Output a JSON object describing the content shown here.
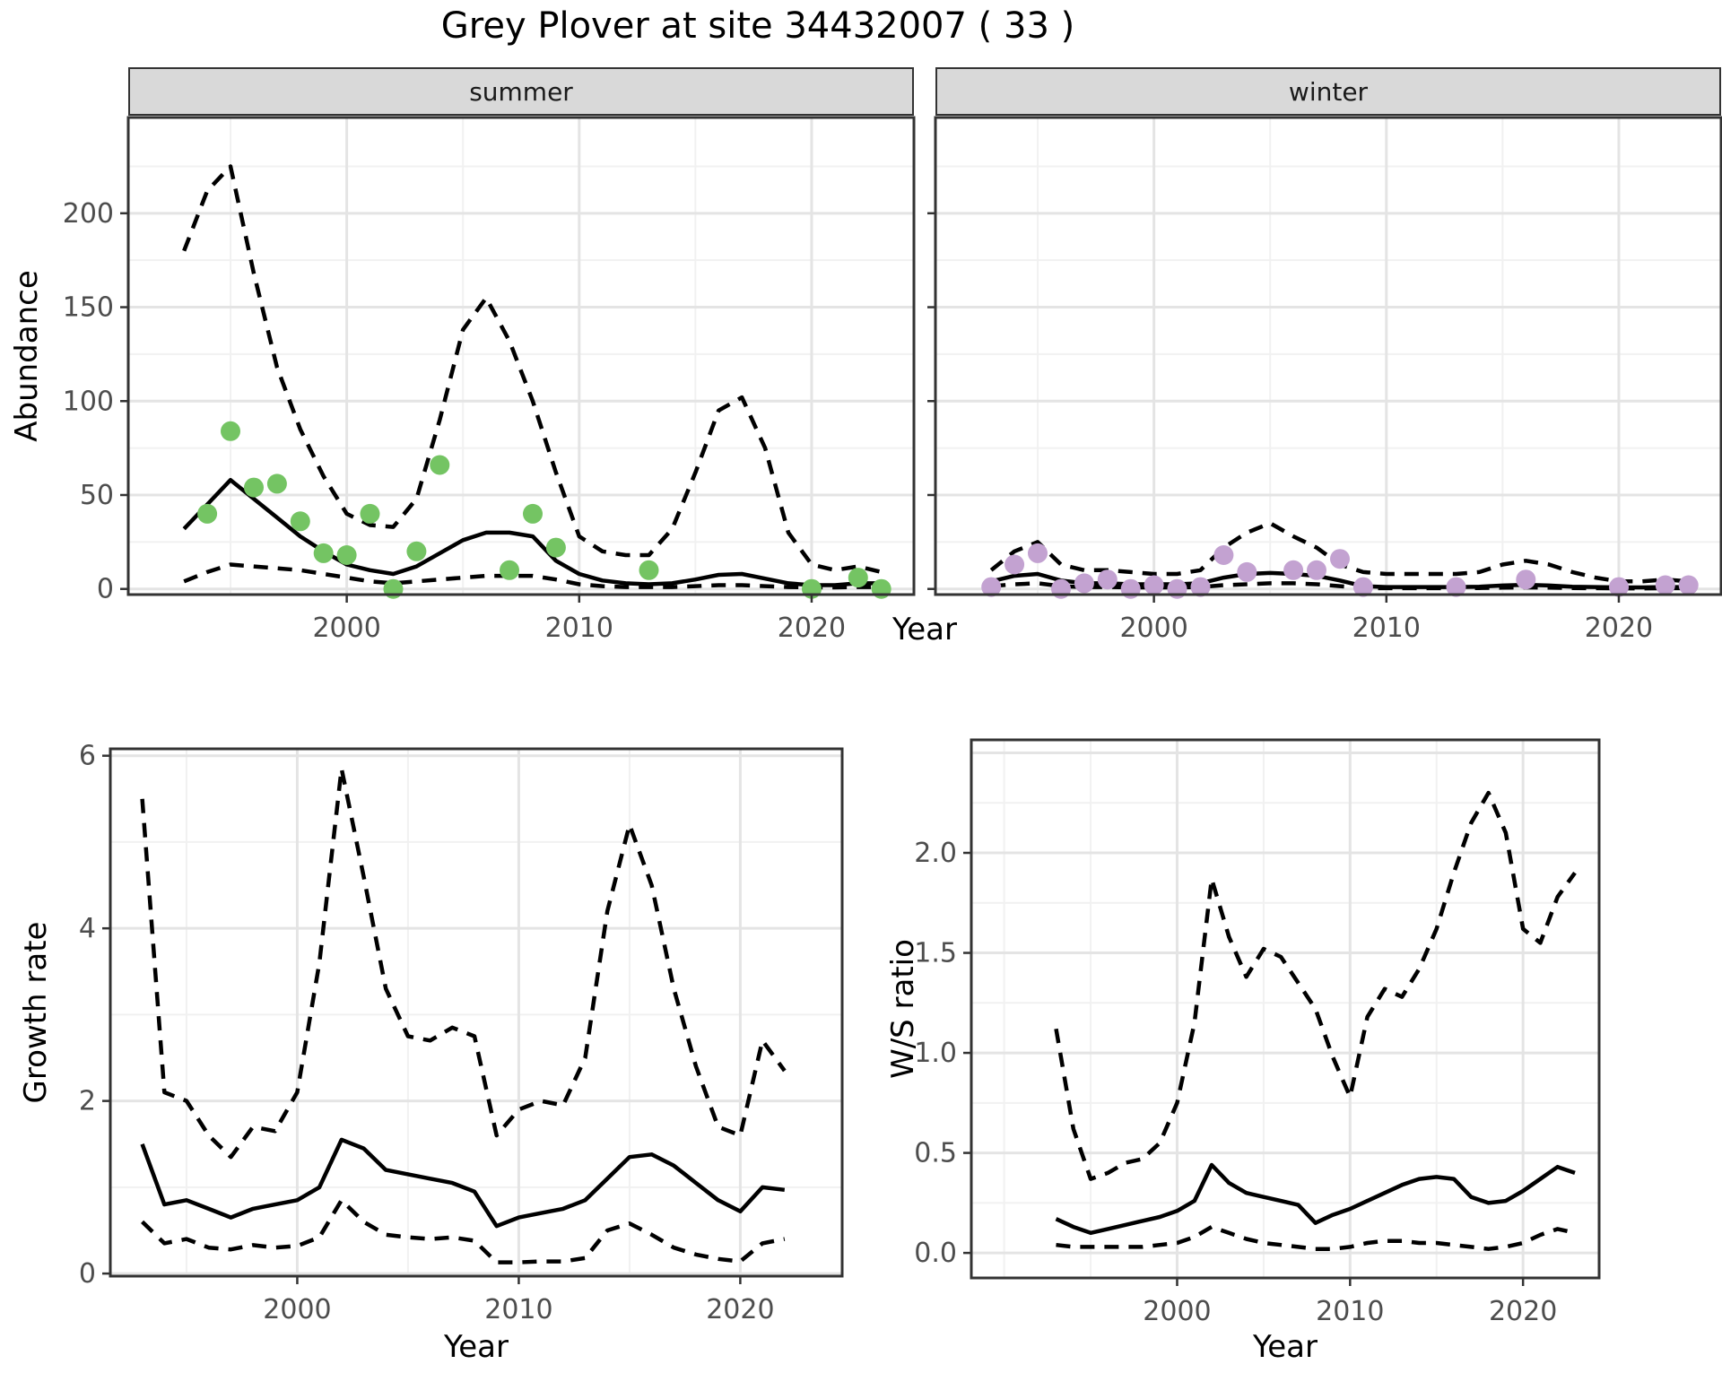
{
  "title": "Grey Plover at site 34432007 ( 33 )",
  "labels": {
    "abundance": "Abundance",
    "growth_rate": "Growth rate",
    "ws_ratio": "W/S ratio",
    "year": "Year"
  },
  "facets": [
    "summer",
    "winter"
  ],
  "colors": {
    "summer_point": "#74c463",
    "winter_point": "#c3a2d1",
    "line": "#000000",
    "panel_border": "#333333",
    "strip_bg": "#d9d9d9",
    "grid_major": "#e4e4e4",
    "grid_minor": "#f1f1f1",
    "tick_label": "#4d4d4d"
  },
  "chart_data": [
    {
      "id": "abundance_summer",
      "type": "line",
      "title": "summer",
      "xlabel": "Year",
      "ylabel": "Abundance",
      "xlim": [
        1990.6,
        2024.4
      ],
      "ylim": [
        -3,
        251
      ],
      "xticks": [
        2000,
        2010,
        2020
      ],
      "xticklabels": [
        "2000",
        "2010",
        "2020"
      ],
      "yticks": [
        0,
        50,
        100,
        150,
        200
      ],
      "yticklabels": [
        "0",
        "50",
        "100",
        "150",
        "200"
      ],
      "xgrid_minor": [
        1995,
        2005,
        2015
      ],
      "ygrid_minor": [
        25,
        75,
        125,
        175,
        225
      ],
      "show_ytick_labels": true,
      "x": [
        1993,
        1994,
        1995,
        1996,
        1997,
        1998,
        1999,
        2000,
        2001,
        2002,
        2003,
        2004,
        2005,
        2006,
        2007,
        2008,
        2009,
        2010,
        2011,
        2012,
        2013,
        2014,
        2015,
        2016,
        2017,
        2018,
        2019,
        2020,
        2021,
        2022,
        2023
      ],
      "series": [
        {
          "name": "fit",
          "style": "solid",
          "values": [
            32,
            45,
            58,
            48,
            38,
            28,
            20,
            13,
            10,
            8,
            12,
            19,
            26,
            30,
            30,
            28,
            15,
            8,
            4.5,
            3,
            2.5,
            3,
            5,
            7.5,
            8,
            5.5,
            3,
            2,
            2,
            3,
            3
          ]
        },
        {
          "name": "upper_ci",
          "style": "dashed",
          "values": [
            180,
            212,
            225,
            168,
            118,
            85,
            60,
            40,
            34,
            33,
            48,
            90,
            138,
            155,
            132,
            100,
            62,
            28,
            20,
            18,
            18,
            32,
            62,
            95,
            102,
            75,
            30,
            13,
            10,
            12,
            9
          ]
        },
        {
          "name": "lower_ci",
          "style": "dashed",
          "values": [
            4,
            9,
            13,
            12,
            11,
            10,
            8,
            6,
            4,
            3,
            4,
            5,
            6,
            7,
            7,
            7,
            5,
            2.5,
            1.5,
            1,
            1,
            1,
            1.5,
            2,
            2,
            1.5,
            1,
            0.8,
            0.8,
            1,
            1
          ]
        }
      ],
      "points": {
        "color_key": "summer_point",
        "years": [
          1994,
          1995,
          1996,
          1997,
          1998,
          1999,
          2000,
          2001,
          2002,
          2003,
          2004,
          2007,
          2008,
          2009,
          2013,
          2020,
          2022,
          2023
        ],
        "values": [
          40,
          84,
          54,
          56,
          36,
          19,
          18,
          40,
          0,
          20,
          66,
          10,
          40,
          22,
          10,
          0,
          6,
          0
        ]
      }
    },
    {
      "id": "abundance_winter",
      "type": "line",
      "title": "winter",
      "xlabel": "Year",
      "ylabel": "Abundance",
      "xlim": [
        1990.6,
        2024.4
      ],
      "ylim": [
        -3,
        251
      ],
      "xticks": [
        2000,
        2010,
        2020
      ],
      "xticklabels": [
        "2000",
        "2010",
        "2020"
      ],
      "yticks": [
        0,
        50,
        100,
        150,
        200
      ],
      "yticklabels": [
        "0",
        "50",
        "100",
        "150",
        "200"
      ],
      "xgrid_minor": [
        1995,
        2005,
        2015
      ],
      "ygrid_minor": [
        25,
        75,
        125,
        175,
        225
      ],
      "show_ytick_labels": false,
      "x": [
        1993,
        1994,
        1995,
        1996,
        1997,
        1998,
        1999,
        2000,
        2001,
        2002,
        2003,
        2004,
        2005,
        2006,
        2007,
        2008,
        2009,
        2010,
        2011,
        2012,
        2013,
        2014,
        2015,
        2016,
        2017,
        2018,
        2019,
        2020,
        2021,
        2022,
        2023
      ],
      "series": [
        {
          "name": "fit",
          "style": "solid",
          "values": [
            4,
            7,
            8,
            4.5,
            3,
            3,
            2.5,
            2.5,
            2.5,
            3,
            6,
            8,
            8.5,
            8,
            7,
            4.5,
            1.5,
            1,
            1,
            1,
            1,
            1.2,
            1.8,
            2.2,
            1.8,
            1.2,
            1,
            0.8,
            0.8,
            1,
            1
          ]
        },
        {
          "name": "upper_ci",
          "style": "dashed",
          "values": [
            10,
            20,
            25,
            13,
            10,
            10,
            9,
            8,
            8,
            10,
            22,
            30,
            35,
            28,
            22,
            13,
            9,
            8,
            8,
            8,
            8,
            9,
            13,
            15,
            13,
            9,
            6,
            4,
            4,
            5,
            4
          ]
        },
        {
          "name": "lower_ci",
          "style": "dashed",
          "values": [
            1.5,
            2.5,
            3,
            1.5,
            1,
            1,
            0.8,
            0.8,
            0.8,
            1,
            2,
            2.5,
            3,
            3,
            2.5,
            1.5,
            0.5,
            0.4,
            0.4,
            0.4,
            0.4,
            0.5,
            0.7,
            0.8,
            0.7,
            0.5,
            0.4,
            0.3,
            0.3,
            0.4,
            0.4
          ]
        }
      ],
      "points": {
        "color_key": "winter_point",
        "years": [
          1993,
          1994,
          1995,
          1996,
          1997,
          1998,
          1999,
          2000,
          2001,
          2002,
          2003,
          2004,
          2006,
          2007,
          2008,
          2009,
          2013,
          2016,
          2020,
          2022,
          2023
        ],
        "values": [
          1,
          13,
          19,
          0,
          3,
          5,
          0,
          2,
          0,
          1,
          18,
          9,
          10,
          10,
          16,
          1,
          1,
          5,
          1,
          2,
          2
        ]
      }
    },
    {
      "id": "growth",
      "type": "line",
      "title": "",
      "xlabel": "Year",
      "ylabel": "Growth rate",
      "xlim": [
        1991.56,
        2024.6
      ],
      "ylim": [
        -0.03,
        6.08
      ],
      "xticks": [
        2000,
        2010,
        2020
      ],
      "xticklabels": [
        "2000",
        "2010",
        "2020"
      ],
      "yticks": [
        0,
        2,
        4,
        6
      ],
      "yticklabels": [
        "0",
        "2",
        "4",
        "6"
      ],
      "xgrid_minor": [
        1995,
        2005,
        2015
      ],
      "ygrid_minor": [
        1,
        3,
        5
      ],
      "show_ytick_labels": true,
      "x": [
        1993,
        1994,
        1995,
        1996,
        1997,
        1998,
        1999,
        2000,
        2001,
        2002,
        2003,
        2004,
        2005,
        2006,
        2007,
        2008,
        2009,
        2010,
        2011,
        2012,
        2013,
        2014,
        2015,
        2016,
        2017,
        2018,
        2019,
        2020,
        2021,
        2022
      ],
      "series": [
        {
          "name": "median",
          "style": "solid",
          "values": [
            1.5,
            0.8,
            0.85,
            0.75,
            0.65,
            0.75,
            0.8,
            0.85,
            1.0,
            1.55,
            1.45,
            1.2,
            1.15,
            1.1,
            1.05,
            0.95,
            0.55,
            0.65,
            0.7,
            0.75,
            0.85,
            1.1,
            1.35,
            1.38,
            1.25,
            1.05,
            0.85,
            0.72,
            1.0,
            0.97
          ]
        },
        {
          "name": "upper_ci",
          "style": "dashed",
          "values": [
            5.5,
            2.1,
            2.0,
            1.6,
            1.35,
            1.7,
            1.65,
            2.1,
            3.6,
            5.85,
            4.6,
            3.3,
            2.75,
            2.7,
            2.85,
            2.75,
            1.6,
            1.9,
            2.0,
            1.95,
            2.5,
            4.2,
            5.2,
            4.5,
            3.3,
            2.4,
            1.7,
            1.6,
            2.7,
            2.35
          ]
        },
        {
          "name": "lower_ci",
          "style": "dashed",
          "values": [
            0.6,
            0.35,
            0.4,
            0.3,
            0.28,
            0.33,
            0.3,
            0.32,
            0.42,
            0.85,
            0.6,
            0.45,
            0.42,
            0.4,
            0.42,
            0.38,
            0.13,
            0.13,
            0.14,
            0.14,
            0.18,
            0.5,
            0.58,
            0.45,
            0.3,
            0.22,
            0.17,
            0.14,
            0.35,
            0.4
          ]
        }
      ],
      "points": null
    },
    {
      "id": "ws",
      "type": "line",
      "title": "",
      "xlabel": "Year",
      "ylabel": "W/S ratio",
      "xlim": [
        1988.1,
        2024.4
      ],
      "ylim": [
        -0.125,
        2.565
      ],
      "xticks": [
        2000,
        2010,
        2020
      ],
      "xticklabels": [
        "2000",
        "2010",
        "2020"
      ],
      "yticks": [
        0,
        0.5,
        1.0,
        1.5,
        2.0
      ],
      "yticklabels": [
        "0.0",
        "0.5",
        "1.0",
        "1.5",
        "2.0"
      ],
      "ygrid_extra_major": [
        2.5
      ],
      "xgrid_minor": [
        1990,
        1995,
        2005,
        2015
      ],
      "ygrid_minor": [
        0.25,
        0.75,
        1.25,
        1.75,
        2.25
      ],
      "show_ytick_labels": true,
      "x": [
        1993,
        1994,
        1995,
        1996,
        1997,
        1998,
        1999,
        2000,
        2001,
        2002,
        2003,
        2004,
        2005,
        2006,
        2007,
        2008,
        2009,
        2010,
        2011,
        2012,
        2013,
        2014,
        2015,
        2016,
        2017,
        2018,
        2019,
        2020,
        2021,
        2022,
        2023
      ],
      "series": [
        {
          "name": "median",
          "style": "solid",
          "values": [
            0.17,
            0.13,
            0.1,
            0.12,
            0.14,
            0.16,
            0.18,
            0.21,
            0.26,
            0.44,
            0.35,
            0.3,
            0.28,
            0.26,
            0.24,
            0.15,
            0.19,
            0.22,
            0.26,
            0.3,
            0.34,
            0.37,
            0.38,
            0.37,
            0.28,
            0.25,
            0.26,
            0.31,
            0.37,
            0.43,
            0.4
          ]
        },
        {
          "name": "upper_ci",
          "style": "dashed",
          "values": [
            1.12,
            0.62,
            0.37,
            0.4,
            0.45,
            0.47,
            0.55,
            0.75,
            1.15,
            1.87,
            1.58,
            1.38,
            1.52,
            1.48,
            1.35,
            1.22,
            0.98,
            0.78,
            1.18,
            1.32,
            1.28,
            1.42,
            1.62,
            1.9,
            2.15,
            2.3,
            2.1,
            1.62,
            1.55,
            1.78,
            1.9
          ]
        },
        {
          "name": "lower_ci",
          "style": "dashed",
          "values": [
            0.04,
            0.03,
            0.03,
            0.03,
            0.03,
            0.03,
            0.04,
            0.05,
            0.08,
            0.13,
            0.1,
            0.07,
            0.05,
            0.04,
            0.03,
            0.02,
            0.02,
            0.03,
            0.05,
            0.06,
            0.06,
            0.05,
            0.05,
            0.04,
            0.03,
            0.02,
            0.03,
            0.05,
            0.09,
            0.12,
            0.1
          ]
        }
      ],
      "points": null
    }
  ]
}
